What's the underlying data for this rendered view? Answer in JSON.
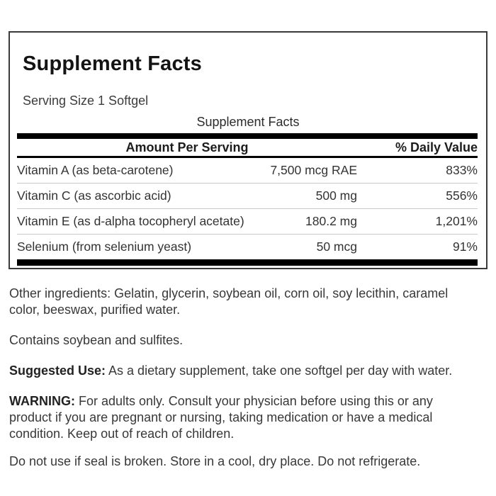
{
  "panel": {
    "title": "Supplement Facts",
    "serving_size": "Serving Size 1 Softgel",
    "table": {
      "caption": "Supplement Facts",
      "amount_header": "Amount Per Serving",
      "dv_header": "% Daily Value",
      "rows": [
        {
          "name": "Vitamin A (as beta-carotene)",
          "amount": "7,500 mcg RAE",
          "dv": "833%"
        },
        {
          "name": "Vitamin C (as ascorbic acid)",
          "amount": "500 mg",
          "dv": "556%"
        },
        {
          "name": "Vitamin E (as d-alpha tocopheryl acetate)",
          "amount": "180.2 mg",
          "dv": "1,201%"
        },
        {
          "name": "Selenium (from selenium yeast)",
          "amount": "50 mcg",
          "dv": "91%"
        }
      ]
    }
  },
  "info": {
    "other_ingredients": "Other ingredients: Gelatin, glycerin, soybean oil, corn oil, soy lecithin, caramel\ncolor, beeswax, purified water.",
    "allergens": "Contains soybean and sulfites.",
    "suggested_use_label": "Suggested Use:",
    "suggested_use_text": " As a dietary supplement, take one softgel per day with water.",
    "warning_label": "WARNING:",
    "warning_text": " For adults only. Consult your physician before using this or any\nproduct if you are pregnant or nursing, taking medication or have a medical\ncondition. Keep out of reach of children.",
    "storage": "Do not use if seal is broken. Store in a cool, dry place. Do not refrigerate."
  },
  "colors": {
    "text": "#333333",
    "heading": "#141414",
    "bar": "#000000",
    "row_divider": "#c9c9c9",
    "panel_border": "#3a3a3a",
    "background": "#ffffff"
  }
}
